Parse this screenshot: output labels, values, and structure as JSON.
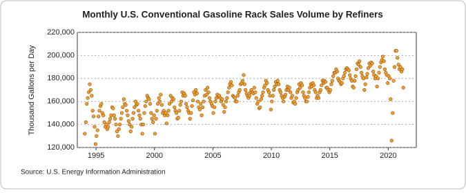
{
  "chart_data": {
    "type": "scatter",
    "title": "Monthly U.S. Conventional Gasoline Rack Sales Volume by Refiners",
    "y_label": "Thousand Gallons per Day",
    "source": "Source: U.S. Energy Information Administration",
    "color": "#f0a030",
    "edge_color": "#8a4a00",
    "grid": true,
    "xlim": [
      1993.4,
      2022.4
    ],
    "xticks": [
      1995,
      2000,
      2005,
      2010,
      2015,
      2020
    ],
    "ylim": [
      120000,
      220000
    ],
    "yticks": [
      {
        "value": 120000,
        "label": "120,000"
      },
      {
        "value": 140000,
        "label": "140,000"
      },
      {
        "value": 160000,
        "label": "160,000"
      },
      {
        "value": 180000,
        "label": "180,000"
      },
      {
        "value": 200000,
        "label": "200,000"
      },
      {
        "value": 220000,
        "label": "220,000"
      }
    ],
    "x": [
      1994.04,
      1994.13,
      1994.21,
      1994.29,
      1994.38,
      1994.46,
      1994.54,
      1994.63,
      1994.71,
      1994.79,
      1994.88,
      1994.96,
      1995.04,
      1995.13,
      1995.21,
      1995.29,
      1995.38,
      1995.46,
      1995.54,
      1995.63,
      1995.71,
      1995.79,
      1995.88,
      1995.96,
      1996.04,
      1996.13,
      1996.21,
      1996.29,
      1996.38,
      1996.46,
      1996.54,
      1996.63,
      1996.71,
      1996.79,
      1996.88,
      1996.96,
      1997.04,
      1997.13,
      1997.21,
      1997.29,
      1997.38,
      1997.46,
      1997.54,
      1997.63,
      1997.71,
      1997.79,
      1997.88,
      1997.96,
      1998.04,
      1998.13,
      1998.21,
      1998.29,
      1998.38,
      1998.46,
      1998.54,
      1998.63,
      1998.71,
      1998.79,
      1998.88,
      1998.96,
      1999.04,
      1999.13,
      1999.21,
      1999.29,
      1999.38,
      1999.46,
      1999.54,
      1999.63,
      1999.71,
      1999.79,
      1999.88,
      1999.96,
      2000.04,
      2000.13,
      2000.21,
      2000.29,
      2000.38,
      2000.46,
      2000.54,
      2000.63,
      2000.71,
      2000.79,
      2000.88,
      2000.96,
      2001.04,
      2001.13,
      2001.21,
      2001.29,
      2001.38,
      2001.46,
      2001.54,
      2001.63,
      2001.71,
      2001.79,
      2001.88,
      2001.96,
      2002.04,
      2002.13,
      2002.21,
      2002.29,
      2002.38,
      2002.46,
      2002.54,
      2002.63,
      2002.71,
      2002.79,
      2002.88,
      2002.96,
      2003.04,
      2003.13,
      2003.21,
      2003.29,
      2003.38,
      2003.46,
      2003.54,
      2003.63,
      2003.71,
      2003.79,
      2003.88,
      2003.96,
      2004.04,
      2004.13,
      2004.21,
      2004.29,
      2004.38,
      2004.46,
      2004.54,
      2004.63,
      2004.71,
      2004.79,
      2004.88,
      2004.96,
      2005.04,
      2005.13,
      2005.21,
      2005.29,
      2005.38,
      2005.46,
      2005.54,
      2005.63,
      2005.71,
      2005.79,
      2005.88,
      2005.96,
      2006.04,
      2006.13,
      2006.21,
      2006.29,
      2006.38,
      2006.46,
      2006.54,
      2006.63,
      2006.71,
      2006.79,
      2006.88,
      2006.96,
      2007.04,
      2007.13,
      2007.21,
      2007.29,
      2007.38,
      2007.46,
      2007.54,
      2007.63,
      2007.71,
      2007.79,
      2007.88,
      2007.96,
      2008.04,
      2008.13,
      2008.21,
      2008.29,
      2008.38,
      2008.46,
      2008.54,
      2008.63,
      2008.71,
      2008.79,
      2008.88,
      2008.96,
      2009.04,
      2009.13,
      2009.21,
      2009.29,
      2009.38,
      2009.46,
      2009.54,
      2009.63,
      2009.71,
      2009.79,
      2009.88,
      2009.96,
      2010.04,
      2010.13,
      2010.21,
      2010.29,
      2010.38,
      2010.46,
      2010.54,
      2010.63,
      2010.71,
      2010.79,
      2010.88,
      2010.96,
      2011.04,
      2011.13,
      2011.21,
      2011.29,
      2011.38,
      2011.46,
      2011.54,
      2011.63,
      2011.71,
      2011.79,
      2011.88,
      2011.96,
      2012.04,
      2012.13,
      2012.21,
      2012.29,
      2012.38,
      2012.46,
      2012.54,
      2012.63,
      2012.71,
      2012.79,
      2012.88,
      2012.96,
      2013.04,
      2013.13,
      2013.21,
      2013.29,
      2013.38,
      2013.46,
      2013.54,
      2013.63,
      2013.71,
      2013.79,
      2013.88,
      2013.96,
      2014.04,
      2014.13,
      2014.21,
      2014.29,
      2014.38,
      2014.46,
      2014.54,
      2014.63,
      2014.71,
      2014.79,
      2014.88,
      2014.96,
      2015.04,
      2015.13,
      2015.21,
      2015.29,
      2015.38,
      2015.46,
      2015.54,
      2015.63,
      2015.71,
      2015.79,
      2015.88,
      2015.96,
      2016.04,
      2016.13,
      2016.21,
      2016.29,
      2016.38,
      2016.46,
      2016.54,
      2016.63,
      2016.71,
      2016.79,
      2016.88,
      2016.96,
      2017.04,
      2017.13,
      2017.21,
      2017.29,
      2017.38,
      2017.46,
      2017.54,
      2017.63,
      2017.71,
      2017.79,
      2017.88,
      2017.96,
      2018.04,
      2018.13,
      2018.21,
      2018.29,
      2018.38,
      2018.46,
      2018.54,
      2018.63,
      2018.71,
      2018.79,
      2018.88,
      2018.96,
      2019.04,
      2019.13,
      2019.21,
      2019.29,
      2019.38,
      2019.46,
      2019.54,
      2019.63,
      2019.71,
      2019.79,
      2019.88,
      2019.96,
      2020.04,
      2020.13,
      2020.21,
      2020.29,
      2020.38,
      2020.46,
      2020.54,
      2020.63,
      2020.71,
      2020.79,
      2020.88,
      2020.96,
      2021.04,
      2021.13,
      2021.21,
      2021.29
    ],
    "values": [
      132000,
      142000,
      158000,
      163000,
      168000,
      175000,
      170000,
      165000,
      152000,
      147000,
      138000,
      123000,
      130000,
      135000,
      147000,
      152000,
      156000,
      158000,
      150000,
      148000,
      142000,
      138000,
      140000,
      136000,
      138000,
      142000,
      145000,
      148000,
      155000,
      154000,
      148000,
      145000,
      140000,
      134000,
      130000,
      136000,
      140000,
      145000,
      150000,
      155000,
      162000,
      158000,
      157000,
      152000,
      148000,
      143000,
      140000,
      134000,
      138000,
      145000,
      150000,
      155000,
      160000,
      157000,
      158000,
      152000,
      148000,
      145000,
      140000,
      132000,
      140000,
      150000,
      156000,
      160000,
      165000,
      163000,
      162000,
      158000,
      150000,
      145000,
      142000,
      148000,
      132000,
      145000,
      152000,
      158000,
      163000,
      160000,
      166000,
      157000,
      150000,
      152000,
      148000,
      150000,
      141000,
      148000,
      152000,
      158000,
      165000,
      160000,
      163000,
      162000,
      155000,
      152000,
      150000,
      145000,
      146000,
      152000,
      157000,
      160000,
      168000,
      165000,
      167000,
      165000,
      158000,
      155000,
      152000,
      150000,
      145000,
      150000,
      156000,
      161000,
      168000,
      166000,
      170000,
      167000,
      160000,
      155000,
      153000,
      158000,
      148000,
      155000,
      160000,
      165000,
      170000,
      166000,
      172000,
      168000,
      163000,
      160000,
      158000,
      156000,
      150000,
      155000,
      160000,
      163000,
      166000,
      164000,
      165000,
      163000,
      160000,
      162000,
      157000,
      151000,
      155000,
      160000,
      163000,
      168000,
      172000,
      175000,
      177000,
      174000,
      165000,
      164000,
      163000,
      160000,
      160000,
      165000,
      168000,
      170000,
      175000,
      176000,
      178000,
      183000,
      175000,
      170000,
      167000,
      165000,
      163000,
      165000,
      168000,
      170000,
      168000,
      167000,
      172000,
      168000,
      163000,
      158000,
      160000,
      154000,
      155000,
      162000,
      165000,
      168000,
      172000,
      174000,
      178000,
      176000,
      170000,
      168000,
      165000,
      153000,
      160000,
      165000,
      170000,
      173000,
      177000,
      175000,
      178000,
      175000,
      170000,
      168000,
      165000,
      163000,
      160000,
      164000,
      166000,
      170000,
      173000,
      170000,
      172000,
      168000,
      163000,
      165000,
      159000,
      160000,
      158000,
      163000,
      168000,
      170000,
      175000,
      172000,
      176000,
      174000,
      168000,
      165000,
      163000,
      160000,
      160000,
      164000,
      168000,
      172000,
      175000,
      173000,
      176000,
      174000,
      170000,
      168000,
      163000,
      165000,
      163000,
      168000,
      170000,
      174000,
      178000,
      176000,
      178000,
      177000,
      172000,
      172000,
      170000,
      168000,
      170000,
      175000,
      178000,
      182000,
      185000,
      185000,
      188000,
      186000,
      180000,
      178000,
      177000,
      175000,
      176000,
      180000,
      182000,
      185000,
      188000,
      189000,
      188000,
      187000,
      183000,
      180000,
      178000,
      173000,
      172000,
      178000,
      182000,
      188000,
      193000,
      192000,
      195000,
      190000,
      185000,
      182000,
      180000,
      170000,
      175000,
      181000,
      184000,
      189000,
      193000,
      191000,
      194000,
      193000,
      186000,
      183000,
      180000,
      182000,
      173000,
      180000,
      185000,
      190000,
      194000,
      196000,
      199000,
      195000,
      188000,
      185000,
      183000,
      176000,
      182000,
      180000,
      162000,
      126000,
      150000,
      178000,
      190000,
      204000,
      204000,
      198000,
      192000,
      188000,
      190000,
      186000,
      188000,
      172000
    ]
  }
}
